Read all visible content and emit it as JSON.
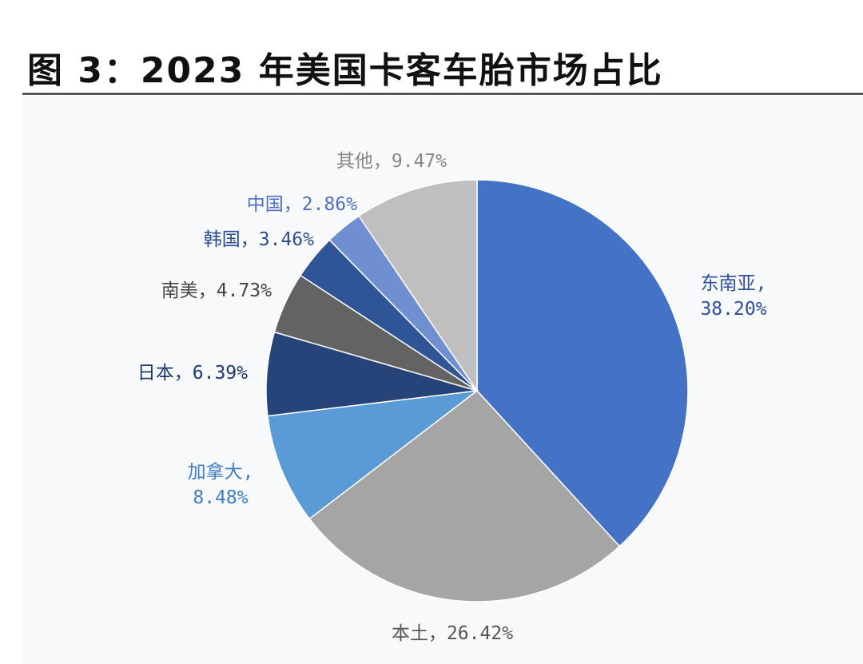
{
  "title": "图 3：2023 年美国卡客车胎市场占比",
  "chart_data": {
    "type": "pie",
    "title": "图 3：2023 年美国卡客车胎市场占比",
    "slices": [
      {
        "name": "东南亚",
        "value": 38.2,
        "label_lines": [
          "东南亚,",
          "38.20%"
        ],
        "color": "#4472c4",
        "label_color": "#2e4e9a"
      },
      {
        "name": "本土",
        "value": 26.42,
        "label_lines": [
          "本土，26.42%"
        ],
        "color": "#a5a5a5",
        "label_color": "#555555"
      },
      {
        "name": "加拿大",
        "value": 8.48,
        "label_lines": [
          "加拿大,",
          "8.48%"
        ],
        "color": "#5b9bd5",
        "label_color": "#3f7fc0"
      },
      {
        "name": "日本",
        "value": 6.39,
        "label_lines": [
          "日本，6.39%"
        ],
        "color": "#264478",
        "label_color": "#1f3a6b"
      },
      {
        "name": "南美",
        "value": 4.73,
        "label_lines": [
          "南美，4.73%"
        ],
        "color": "#636363",
        "label_color": "#444444"
      },
      {
        "name": "韩国",
        "value": 3.46,
        "label_lines": [
          "韩国，3.46%"
        ],
        "color": "#2f5597",
        "label_color": "#2a4d8f"
      },
      {
        "name": "中国",
        "value": 2.86,
        "label_lines": [
          "中国，2.86%"
        ],
        "color": "#6f8fd1",
        "label_color": "#4f6fc0"
      },
      {
        "name": "其他",
        "value": 9.47,
        "label_lines": [
          "其他，9.47%"
        ],
        "color": "#bfbfbf",
        "label_color": "#888888"
      }
    ]
  }
}
